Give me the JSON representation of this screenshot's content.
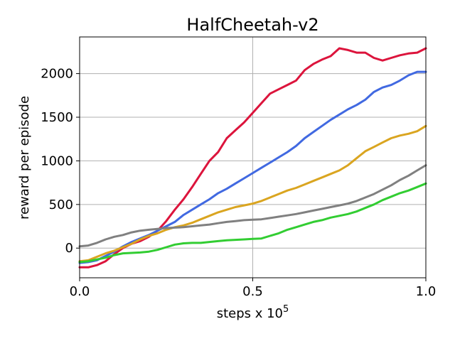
{
  "chart_data": {
    "type": "line",
    "title": "HalfCheetah-v2",
    "xlabel": "steps x 10",
    "xlabel_exponent": "5",
    "ylabel": "reward per episode",
    "xlim": [
      0.0,
      1.0
    ],
    "ylim": [
      -340,
      2420
    ],
    "x_ticks": [
      0.0,
      0.5,
      1.0
    ],
    "x_tick_labels": [
      "0.0",
      "0.5",
      "1.0"
    ],
    "y_ticks": [
      0,
      500,
      1000,
      1500,
      2000
    ],
    "y_tick_labels": [
      "0",
      "500",
      "1000",
      "1500",
      "2000"
    ],
    "grid": true,
    "x": [
      0.0,
      0.025,
      0.05,
      0.075,
      0.1,
      0.125,
      0.15,
      0.175,
      0.2,
      0.225,
      0.25,
      0.275,
      0.3,
      0.325,
      0.35,
      0.375,
      0.4,
      0.425,
      0.45,
      0.475,
      0.5,
      0.525,
      0.55,
      0.575,
      0.6,
      0.625,
      0.65,
      0.675,
      0.7,
      0.725,
      0.75,
      0.775,
      0.8,
      0.825,
      0.85,
      0.875,
      0.9,
      0.925,
      0.95,
      0.975,
      1.0
    ],
    "series": [
      {
        "color": "#dc143c",
        "values": [
          -220,
          -220,
          -195,
          -150,
          -70,
          0,
          50,
          80,
          130,
          200,
          310,
          440,
          560,
          700,
          850,
          1000,
          1100,
          1260,
          1350,
          1440,
          1550,
          1660,
          1770,
          1820,
          1870,
          1920,
          2040,
          2110,
          2160,
          2200,
          2290,
          2270,
          2240,
          2240,
          2180,
          2150,
          2180,
          2210,
          2230,
          2240,
          2290
        ]
      },
      {
        "color": "#4169e1",
        "values": [
          -170,
          -160,
          -140,
          -90,
          -40,
          20,
          70,
          110,
          150,
          200,
          250,
          300,
          380,
          440,
          500,
          560,
          630,
          680,
          740,
          800,
          860,
          920,
          980,
          1040,
          1100,
          1170,
          1260,
          1330,
          1400,
          1470,
          1530,
          1590,
          1640,
          1700,
          1790,
          1840,
          1870,
          1920,
          1980,
          2020,
          2020
        ]
      },
      {
        "color": "#daa520",
        "values": [
          -150,
          -140,
          -100,
          -60,
          -30,
          10,
          50,
          100,
          140,
          170,
          210,
          240,
          260,
          290,
          330,
          370,
          410,
          440,
          470,
          490,
          510,
          540,
          580,
          620,
          660,
          690,
          730,
          770,
          810,
          850,
          890,
          950,
          1030,
          1110,
          1160,
          1210,
          1260,
          1290,
          1310,
          1340,
          1400
        ]
      },
      {
        "color": "#808080",
        "values": [
          20,
          30,
          60,
          100,
          130,
          150,
          180,
          200,
          210,
          220,
          230,
          235,
          240,
          250,
          260,
          270,
          285,
          300,
          310,
          320,
          325,
          330,
          345,
          360,
          375,
          390,
          410,
          430,
          450,
          470,
          490,
          510,
          540,
          580,
          620,
          670,
          720,
          780,
          830,
          890,
          950
        ]
      },
      {
        "color": "#32cd32",
        "values": [
          -160,
          -150,
          -130,
          -110,
          -80,
          -60,
          -55,
          -50,
          -40,
          -20,
          10,
          40,
          55,
          60,
          60,
          70,
          80,
          90,
          95,
          100,
          105,
          110,
          140,
          170,
          210,
          240,
          270,
          300,
          320,
          350,
          370,
          390,
          420,
          460,
          500,
          550,
          590,
          630,
          660,
          700,
          740
        ]
      }
    ]
  }
}
